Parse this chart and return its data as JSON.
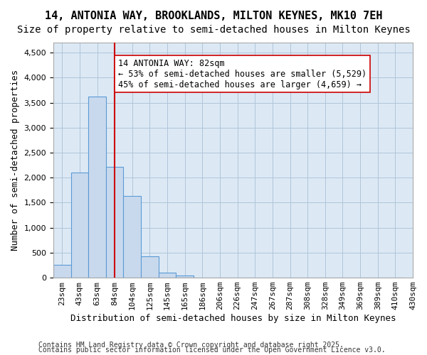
{
  "title1": "14, ANTONIA WAY, BROOKLANDS, MILTON KEYNES, MK10 7EH",
  "title2": "Size of property relative to semi-detached houses in Milton Keynes",
  "xlabel": "Distribution of semi-detached houses by size in Milton Keynes",
  "ylabel": "Number of semi-detached properties",
  "bar_values": [
    250,
    2100,
    3620,
    2220,
    1630,
    430,
    100,
    45,
    0,
    0,
    0,
    0,
    0,
    0,
    0,
    0,
    0,
    0,
    0,
    0
  ],
  "bin_labels": [
    "23sqm",
    "43sqm",
    "63sqm",
    "84sqm",
    "104sqm",
    "125sqm",
    "145sqm",
    "165sqm",
    "186sqm",
    "206sqm",
    "226sqm",
    "247sqm",
    "267sqm",
    "287sqm",
    "308sqm",
    "328sqm",
    "349sqm",
    "369sqm",
    "389sqm",
    "410sqm"
  ],
  "last_label": "430sqm",
  "bar_color": "#c9d9ed",
  "bar_edge_color": "#5b9bd5",
  "grid_color": "#b0c4d8",
  "bg_color": "#dce9f5",
  "vline_x": 3.0,
  "vline_color": "#cc0000",
  "annotation_text": "14 ANTONIA WAY: 82sqm\n← 53% of semi-detached houses are smaller (5,529)\n45% of semi-detached houses are larger (4,659) →",
  "annotation_box_color": "#ffffff",
  "annotation_box_edge": "#cc0000",
  "ylim": [
    0,
    4700
  ],
  "yticks": [
    0,
    500,
    1000,
    1500,
    2000,
    2500,
    3000,
    3500,
    4000,
    4500
  ],
  "footer1": "Contains HM Land Registry data © Crown copyright and database right 2025.",
  "footer2": "Contains public sector information licensed under the Open Government Licence v3.0.",
  "title1_fontsize": 11,
  "title2_fontsize": 10,
  "xlabel_fontsize": 9,
  "ylabel_fontsize": 9,
  "tick_fontsize": 8,
  "annotation_fontsize": 8.5,
  "footer_fontsize": 7
}
